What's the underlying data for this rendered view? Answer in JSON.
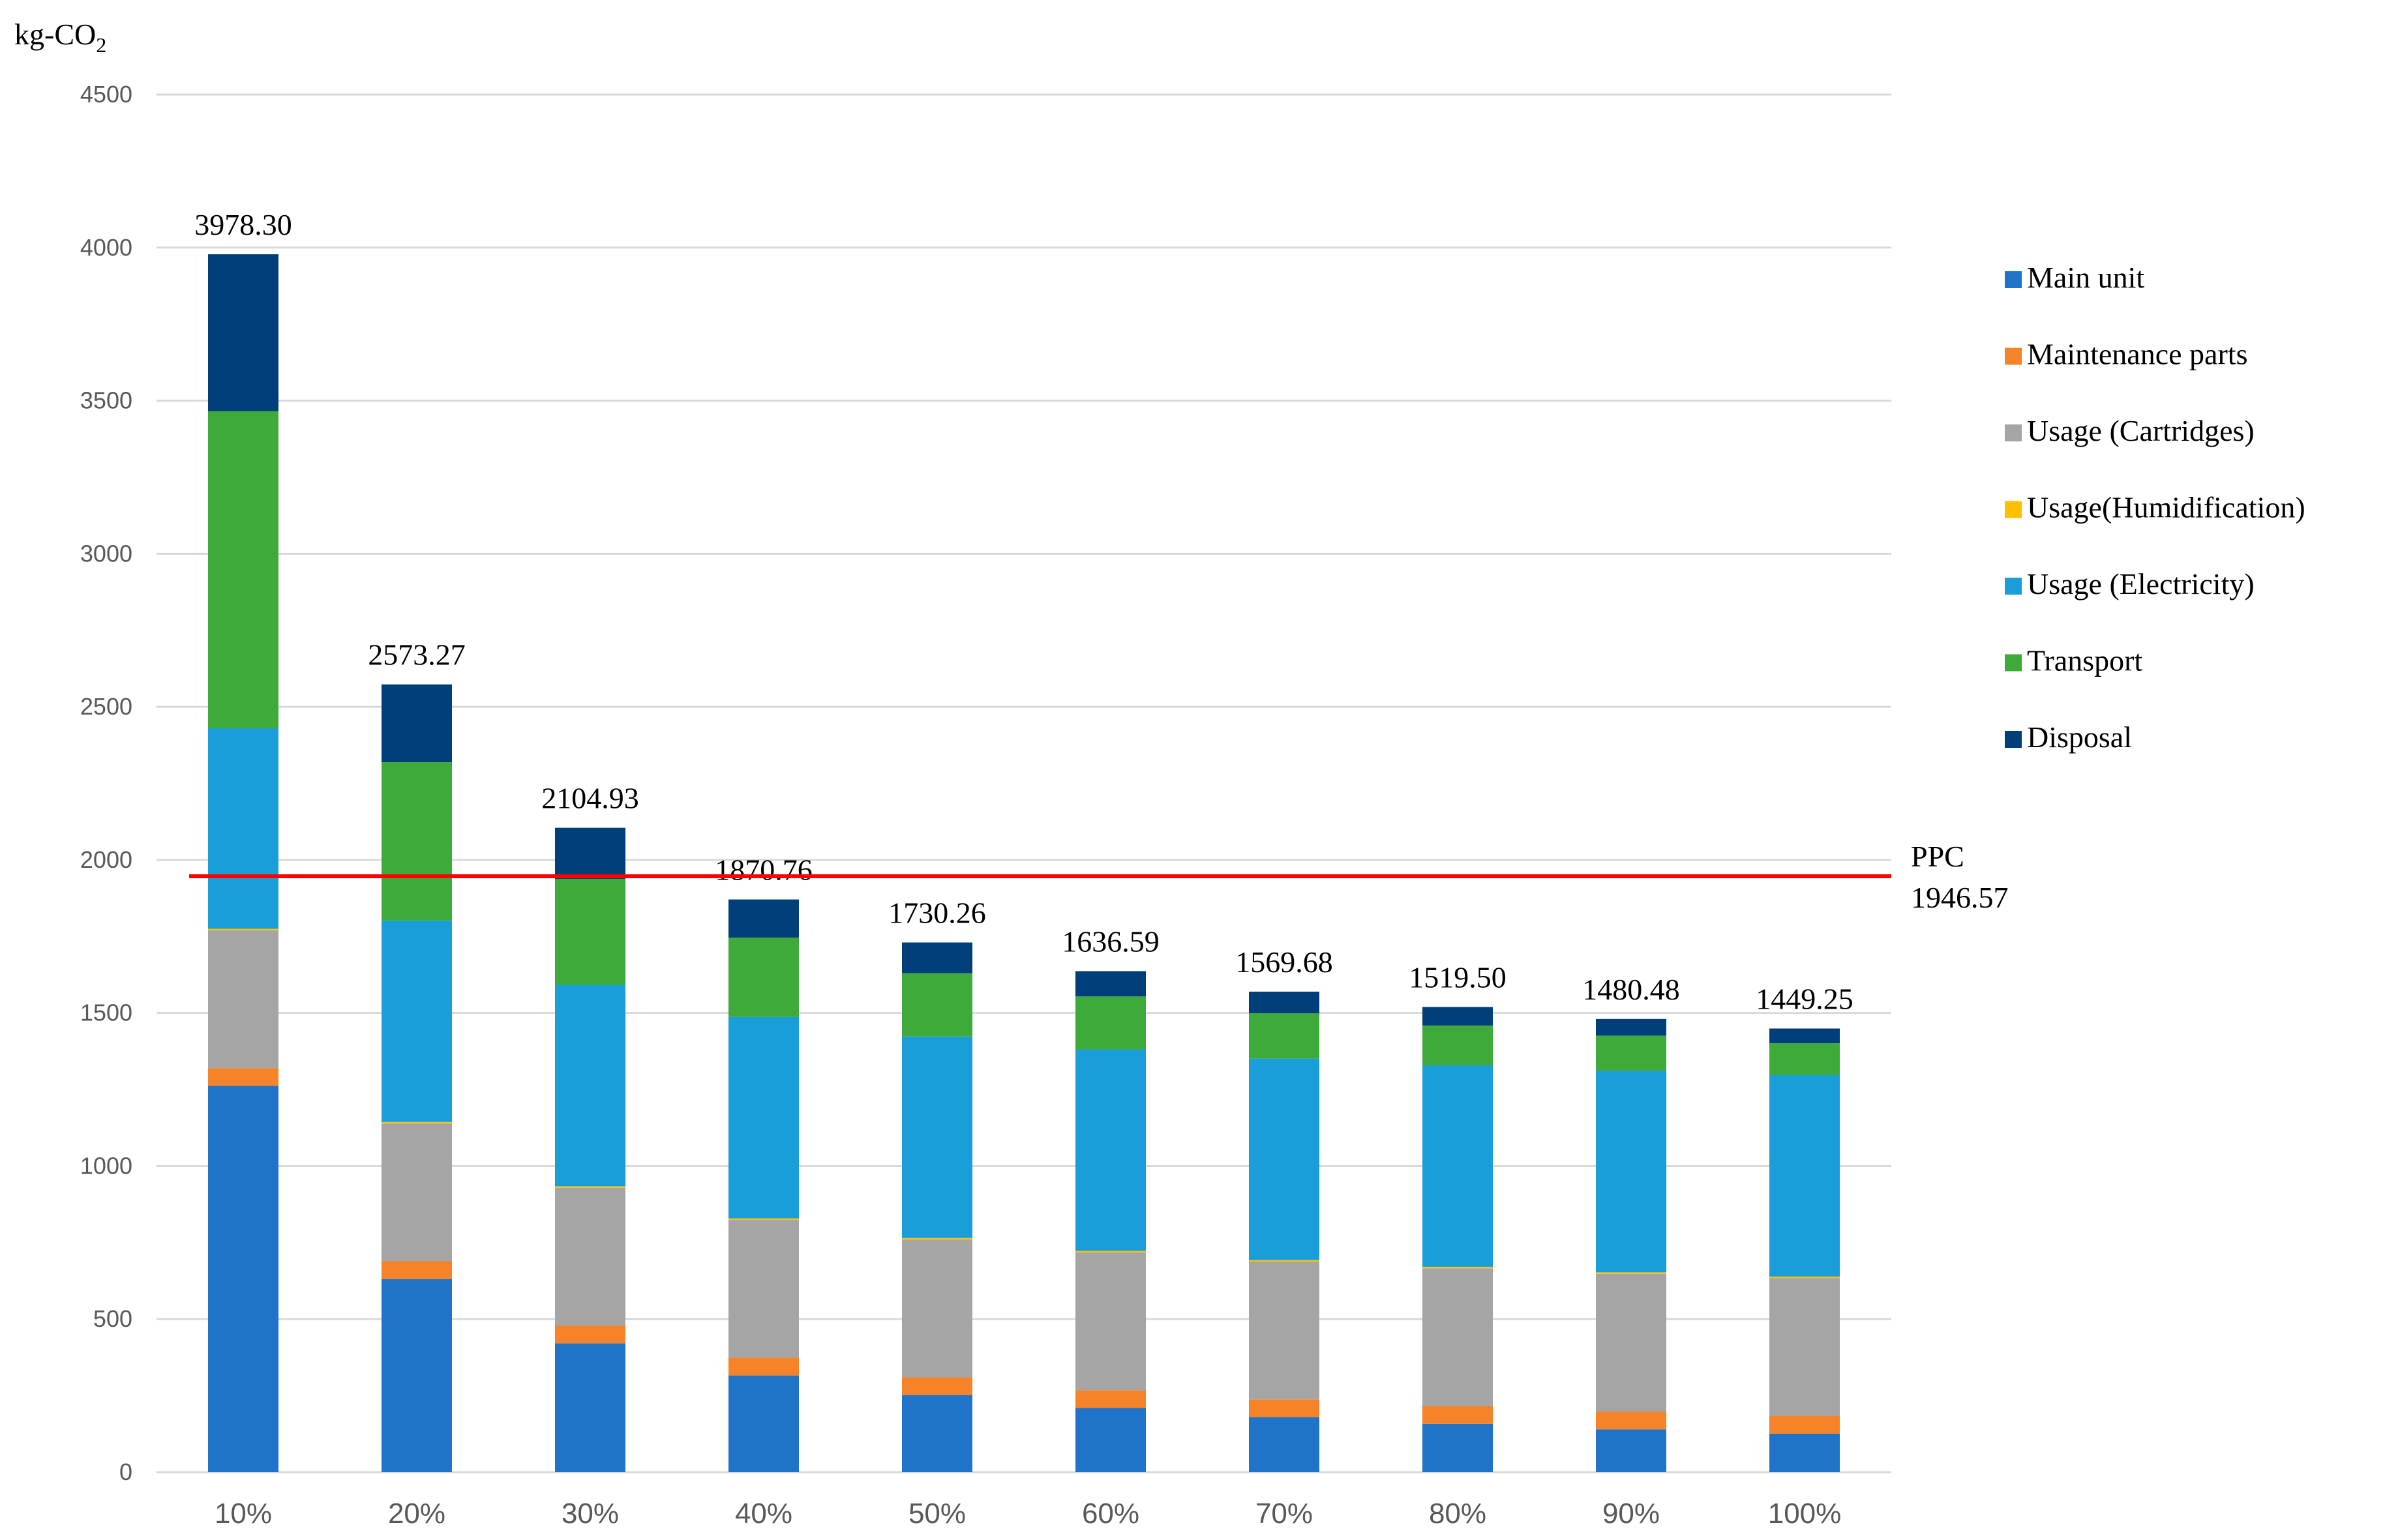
{
  "chart_data": {
    "type": "bar",
    "stacked": true,
    "ylabel_main": "kg-CO",
    "ylabel_subscript": "2",
    "ylim": [
      0,
      4500
    ],
    "yticks": [
      "0",
      "500",
      "1000",
      "1500",
      "2000",
      "2500",
      "3000",
      "3500",
      "4000",
      "4500"
    ],
    "ytick_values": [
      0,
      500,
      1000,
      1500,
      2000,
      2500,
      3000,
      3500,
      4000,
      4500
    ],
    "grid": true,
    "legend_position": "right",
    "categories": [
      "10%",
      "20%",
      "30%",
      "40%",
      "50%",
      "60%",
      "70%",
      "80%",
      "90%",
      "100%"
    ],
    "series": [
      {
        "name": "Main unit",
        "color": "#1F74CA",
        "values": [
          1262,
          631,
          421,
          316,
          252,
          210,
          180,
          158,
          140,
          126
        ]
      },
      {
        "name": "Maintenance parts",
        "color": "#F5832A",
        "values": [
          58,
          58,
          58,
          58,
          58,
          58,
          58,
          58,
          58,
          58
        ]
      },
      {
        "name": "Usage (Cartridges)",
        "color": "#A5A5A5",
        "values": [
          450,
          450,
          450,
          450,
          450,
          450,
          450,
          450,
          450,
          450
        ]
      },
      {
        "name": "Usage(Humidification)",
        "color": "#FFC000",
        "values": [
          5,
          5,
          5,
          5,
          5,
          5,
          5,
          5,
          5,
          5
        ]
      },
      {
        "name": "Usage (Electricity)",
        "color": "#1A9ED9",
        "values": [
          655,
          658,
          658,
          658,
          658,
          658,
          658,
          658,
          658,
          658
        ]
      },
      {
        "name": "Transport",
        "color": "#3EAA3A",
        "values": [
          1036,
          517,
          346,
          259,
          207,
          173,
          148,
          130,
          115,
          104
        ]
      },
      {
        "name": "Disposal",
        "color": "#003F7A",
        "values": [
          512.3,
          254.27,
          166.93,
          124.76,
          100.26,
          82.59,
          70.68,
          60.5,
          54.48,
          48.25
        ]
      }
    ],
    "totals": [
      3978.3,
      2573.27,
      2104.93,
      1870.76,
      1730.26,
      1636.59,
      1569.68,
      1519.5,
      1480.48,
      1449.25
    ],
    "total_labels": [
      "3978.30",
      "2573.27",
      "2104.93",
      "1870.76",
      "1730.26",
      "1636.59",
      "1569.68",
      "1519.50",
      "1480.48",
      "1449.25"
    ],
    "reference_line": {
      "name": "PPC",
      "value": 1946.57,
      "value_label": "1946.57",
      "color": "#FF0000"
    }
  }
}
